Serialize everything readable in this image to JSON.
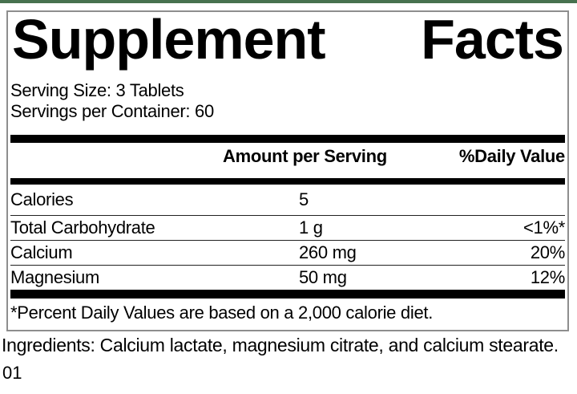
{
  "label": {
    "title_words": [
      "Supplement",
      "Facts"
    ],
    "serving_size": "Serving Size: 3 Tablets",
    "servings_per_container": "Servings per Container: 60",
    "columns": {
      "amount": "Amount per Serving",
      "daily_value": "%Daily Value"
    },
    "nutrients": [
      {
        "name": "Calories",
        "amount": "5",
        "dv": ""
      },
      {
        "name": "Total Carbohydrate",
        "amount": "1 g",
        "dv": "<1%*"
      },
      {
        "name": "Calcium",
        "amount": "260 mg",
        "dv": "20%"
      },
      {
        "name": "Magnesium",
        "amount": "50 mg",
        "dv": "12%"
      }
    ],
    "footnote": "*Percent Daily Values are based on a 2,000 calorie diet."
  },
  "ingredients": "Ingredients: Calcium lactate, magnesium citrate, and calcium stearate.",
  "footer_code": "01",
  "colors": {
    "top_bar": "#47714f",
    "box_border": "#8e8e8e",
    "divider_bar": "#000000",
    "row_rule": "#222222"
  }
}
